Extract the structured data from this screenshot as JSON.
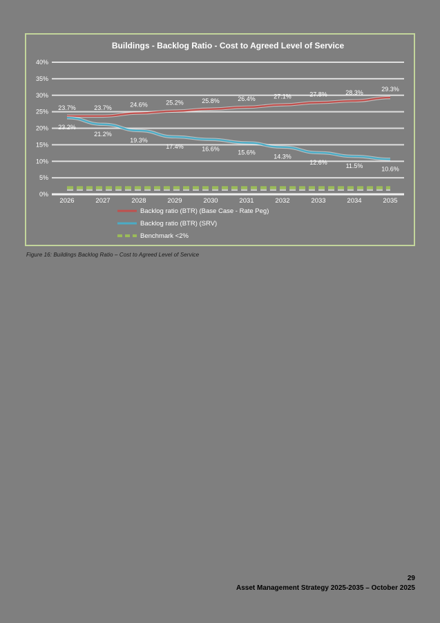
{
  "page": {
    "caption": "Figure 16: Buildings Backlog Ratio – Cost to Agreed Level of Service",
    "footer": {
      "page_number": "29",
      "text": "Asset Management Strategy 2025-2035 – October 2025"
    }
  },
  "chart_data": {
    "type": "line",
    "title": "Buildings - Backlog Ratio - Cost to Agreed Level of Service",
    "categories": [
      "2026",
      "2027",
      "2028",
      "2029",
      "2030",
      "2031",
      "2032",
      "2033",
      "2034",
      "2035"
    ],
    "ylim": [
      0,
      40
    ],
    "ytick_step": 5,
    "ytick_labels": [
      "0%",
      "5%",
      "10%",
      "15%",
      "20%",
      "25%",
      "30%",
      "35%",
      "40%"
    ],
    "grid": true,
    "legend_position": "bottom-left",
    "colors": {
      "background": "#7f7f7f",
      "frame_border": "#c3d69b",
      "gridline": "#f0f0f0",
      "text": "#ffffff"
    },
    "series": [
      {
        "name": "Backlog ratio (BTR) (Base Case - Rate Peg)",
        "color": "#c0504d",
        "dash": null,
        "label_side": "above",
        "values": [
          23.7,
          23.7,
          24.6,
          25.2,
          25.8,
          26.4,
          27.1,
          27.8,
          28.3,
          29.3
        ],
        "labels": [
          "23.7%",
          "23.7%",
          "24.6%",
          "25.2%",
          "25.8%",
          "26.4%",
          "27.1%",
          "27.8%",
          "28.3%",
          "29.3%"
        ]
      },
      {
        "name": "Backlog ratio (BTR) (SRV)",
        "color": "#4bacc6",
        "dash": null,
        "label_side": "below",
        "values": [
          23.2,
          21.2,
          19.3,
          17.4,
          16.6,
          15.6,
          14.3,
          12.6,
          11.5,
          10.6
        ],
        "labels": [
          "23.2%",
          "21.2%",
          "19.3%",
          "17.4%",
          "16.6%",
          "15.6%",
          "14.3%",
          "12.6%",
          "11.5%",
          "10.6%"
        ]
      },
      {
        "name": "Benchmark <2%",
        "color": "#9bbb59",
        "dash": "9 5",
        "label_side": null,
        "values": [
          2,
          2,
          2,
          2,
          2,
          2,
          2,
          2,
          2,
          2
        ],
        "labels": null
      }
    ]
  }
}
